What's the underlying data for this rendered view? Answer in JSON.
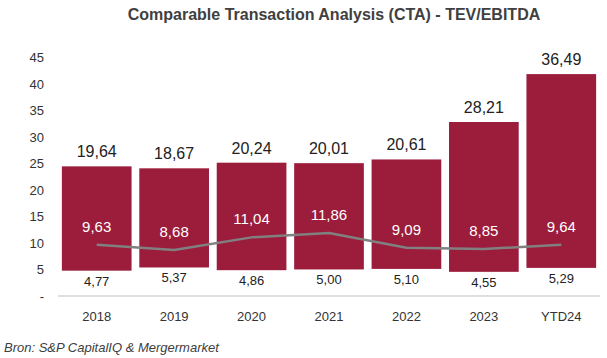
{
  "chart_data": {
    "type": "bar",
    "title": "Comparable Transaction Analysis (CTA) - TEV/EBITDA",
    "source": "Bron: S&P CapitalIQ & Mergermarket",
    "categories": [
      "2018",
      "2019",
      "2020",
      "2021",
      "2022",
      "2023",
      "YTD24"
    ],
    "stacked": true,
    "data_labels": true,
    "grid": false,
    "ylim": [
      0,
      45
    ],
    "yticks": [
      {
        "value": 0,
        "label": "-"
      },
      5,
      10,
      15,
      20,
      25,
      30,
      35,
      40,
      45
    ],
    "series": [
      {
        "type": "bar",
        "color": "none",
        "values": [
          4.77,
          5.37,
          4.86,
          5.0,
          5.1,
          4.55,
          5.29
        ],
        "value_labels": [
          "4,77",
          "5,37",
          "4,86",
          "5,00",
          "5,10",
          "4,55",
          "5,29"
        ]
      },
      {
        "type": "bar",
        "color": "#9c1c3c",
        "values": [
          19.64,
          18.67,
          20.24,
          20.01,
          20.61,
          28.21,
          36.49
        ],
        "value_labels": [
          "19,64",
          "18,67",
          "20,24",
          "20,01",
          "20,61",
          "28,21",
          "36,49"
        ]
      },
      {
        "type": "line",
        "color": "#808080",
        "values": [
          9.63,
          8.68,
          11.04,
          11.86,
          9.09,
          8.85,
          9.64
        ],
        "value_labels": [
          "9,63",
          "8,68",
          "11,04",
          "11,86",
          "9,09",
          "8,85",
          "9,64"
        ]
      }
    ]
  }
}
